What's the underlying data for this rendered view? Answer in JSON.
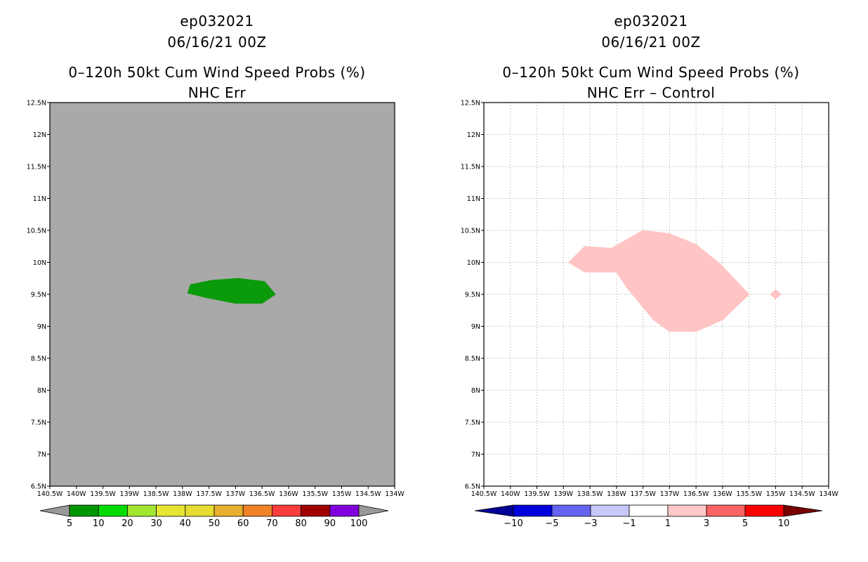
{
  "colors": {
    "land_gray": "#a9a9a9",
    "grid": "#a0a0a0",
    "left_fill": "#0a9a0a",
    "right_fill": "#ffc4c4"
  },
  "chart_data": [
    {
      "type": "map-contour",
      "title_lines": [
        "ep032021",
        "06/16/21 00Z",
        "0–120h 50kt Cum Wind Speed Probs (%)",
        "NHC Err"
      ],
      "xlim": [
        -140.5,
        -134
      ],
      "ylim": [
        6.5,
        12.5
      ],
      "x_ticks": [
        -140.5,
        -140,
        -139.5,
        -139,
        -138.5,
        -138,
        -137.5,
        -137,
        -136.5,
        -136,
        -135.5,
        -135,
        -134.5,
        -134
      ],
      "x_tick_labels": [
        "140.5W",
        "140W",
        "139.5W",
        "139W",
        "138.5W",
        "138W",
        "137.5W",
        "137W",
        "136.5W",
        "136W",
        "135.5W",
        "135W",
        "134.5W",
        "134W"
      ],
      "y_ticks": [
        6.5,
        7,
        7.5,
        8,
        8.5,
        9,
        9.5,
        10,
        10.5,
        11,
        11.5,
        12,
        12.5
      ],
      "y_tick_labels": [
        "6.5N",
        "7N",
        "7.5N",
        "8N",
        "8.5N",
        "9N",
        "9.5N",
        "10N",
        "10.5N",
        "11N",
        "11.5N",
        "12N",
        "12.5N"
      ],
      "grid": false,
      "background": "gray",
      "regions": [
        {
          "level": "5-10",
          "color": "#0a9a0a",
          "polygon": [
            [
              -137.85,
              9.65
            ],
            [
              -137.45,
              9.72
            ],
            [
              -136.95,
              9.75
            ],
            [
              -136.45,
              9.7
            ],
            [
              -136.25,
              9.5
            ],
            [
              -136.5,
              9.36
            ],
            [
              -137.0,
              9.36
            ],
            [
              -137.55,
              9.45
            ],
            [
              -137.9,
              9.52
            ]
          ]
        }
      ],
      "colorbar": {
        "labels": [
          "5",
          "10",
          "20",
          "30",
          "40",
          "50",
          "60",
          "70",
          "80",
          "90",
          "100"
        ],
        "colors": [
          "#009600",
          "#00dc00",
          "#a0e632",
          "#e6e632",
          "#e6dc32",
          "#e6af2d",
          "#f08228",
          "#fa3c3c",
          "#a00000",
          "#8200dc"
        ],
        "extend_low_color": "#999999",
        "extend_high_color": "#999999"
      }
    },
    {
      "type": "map-contour",
      "title_lines": [
        "ep032021",
        "06/16/21 00Z",
        "0–120h 50kt Cum Wind Speed Probs (%)",
        "NHC Err – Control"
      ],
      "xlim": [
        -140.5,
        -134
      ],
      "ylim": [
        6.5,
        12.5
      ],
      "x_ticks": [
        -140.5,
        -140,
        -139.5,
        -139,
        -138.5,
        -138,
        -137.5,
        -137,
        -136.5,
        -136,
        -135.5,
        -135,
        -134.5,
        -134
      ],
      "x_tick_labels": [
        "140.5W",
        "140W",
        "139.5W",
        "139W",
        "138.5W",
        "138W",
        "137.5W",
        "137W",
        "136.5W",
        "136W",
        "135.5W",
        "135W",
        "134.5W",
        "134W"
      ],
      "y_ticks": [
        6.5,
        7,
        7.5,
        8,
        8.5,
        9,
        9.5,
        10,
        10.5,
        11,
        11.5,
        12,
        12.5
      ],
      "y_tick_labels": [
        "6.5N",
        "7N",
        "7.5N",
        "8N",
        "8.5N",
        "9N",
        "9.5N",
        "10N",
        "10.5N",
        "11N",
        "11.5N",
        "12N",
        "12.5N"
      ],
      "grid": true,
      "background": "white",
      "regions": [
        {
          "level": "1-3",
          "color": "#ffc4c4",
          "polygon": [
            [
              -138.9,
              10.0
            ],
            [
              -138.6,
              10.25
            ],
            [
              -138.1,
              10.22
            ],
            [
              -137.5,
              10.5
            ],
            [
              -137.0,
              10.45
            ],
            [
              -136.5,
              10.28
            ],
            [
              -136.05,
              9.98
            ],
            [
              -135.5,
              9.5
            ],
            [
              -136.0,
              9.1
            ],
            [
              -136.5,
              8.92
            ],
            [
              -137.0,
              8.92
            ],
            [
              -137.3,
              9.1
            ],
            [
              -137.5,
              9.3
            ],
            [
              -137.8,
              9.6
            ],
            [
              -138.0,
              9.85
            ],
            [
              -138.6,
              9.85
            ]
          ]
        },
        {
          "level": "1-3",
          "color": "#ffc4c4",
          "polygon": [
            [
              -135.1,
              9.5
            ],
            [
              -135.0,
              9.57
            ],
            [
              -134.9,
              9.5
            ],
            [
              -135.0,
              9.43
            ]
          ]
        }
      ],
      "colorbar": {
        "labels": [
          "−10",
          "−5",
          "−3",
          "−1",
          "1",
          "3",
          "5",
          "10"
        ],
        "colors": [
          "#0000dc",
          "#6464f0",
          "#c8c8fa",
          "#ffffff",
          "#ffc8c8",
          "#fa6464",
          "#fa0000"
        ],
        "extend_low_color": "#000096",
        "extend_high_color": "#780000"
      }
    }
  ]
}
